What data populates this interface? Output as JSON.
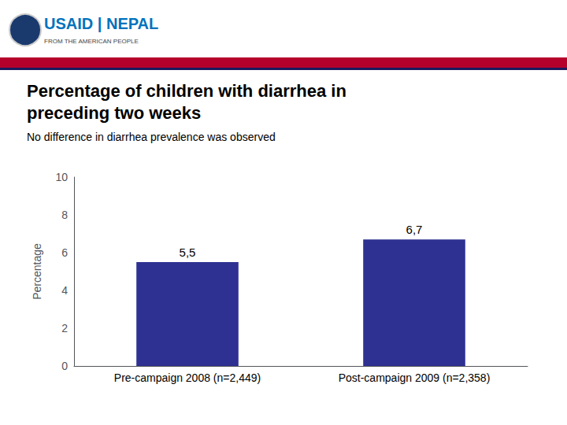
{
  "chart_data": {
    "type": "bar",
    "title": "Percentage of children with diarrhea in\npreceding two weeks",
    "subtitle": "No difference in diarrhea prevalence was observed",
    "annotations": [
      "USAID | NEPAL",
      "FROM THE AMERICAN PEOPLE"
    ],
    "categories": [
      "Pre-campaign 2008 (n=2,449)",
      "Post-campaign 2009 (n=2,358)"
    ],
    "values": [
      5.5,
      6.7
    ],
    "value_labels": [
      "5,5",
      "6,7"
    ],
    "data_labels": true,
    "color": "#2e3191",
    "ylabel": "Percentage",
    "ylim": [
      0,
      10
    ],
    "yticks": [
      0,
      2,
      4,
      6,
      8,
      10
    ],
    "grid": false
  }
}
